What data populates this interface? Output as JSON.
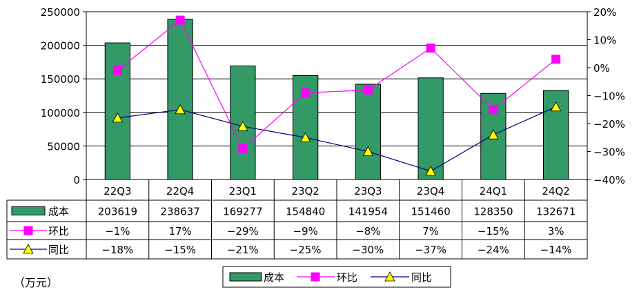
{
  "unit_label": "（万元）",
  "colors": {
    "bar_fill": "#339966",
    "bar_stroke": "#000000",
    "qoq_line": "#ff00ff",
    "qoq_marker": "#ff00ff",
    "yoy_line": "#000080",
    "yoy_marker": "#ffff00"
  },
  "chart_data": {
    "type": "bar+line",
    "categories": [
      "22Q3",
      "22Q4",
      "23Q1",
      "23Q2",
      "23Q3",
      "23Q4",
      "24Q1",
      "24Q2"
    ],
    "left_axis": {
      "min": 0,
      "max": 250000,
      "ticks": [
        "0",
        "50000",
        "100000",
        "150000",
        "200000",
        "250000"
      ]
    },
    "right_axis": {
      "min": -40,
      "max": 20,
      "ticks": [
        "-40%",
        "-30%",
        "-20%",
        "-10%",
        "0%",
        "10%",
        "20%"
      ]
    },
    "series": [
      {
        "name": "成本",
        "type": "bar",
        "axis": "left",
        "values": [
          203619,
          238637,
          169277,
          154840,
          141954,
          151460,
          128350,
          132671
        ],
        "labels": [
          "203619",
          "238637",
          "169277",
          "154840",
          "141954",
          "151460",
          "128350",
          "132671"
        ]
      },
      {
        "name": "环比",
        "type": "line",
        "axis": "right",
        "marker": "square",
        "values": [
          -1,
          17,
          -29,
          -9,
          -8,
          7,
          -15,
          3
        ],
        "labels": [
          "-1%",
          "17%",
          "-29%",
          "-9%",
          "-8%",
          "7%",
          "-15%",
          "3%"
        ]
      },
      {
        "name": "同比",
        "type": "line",
        "axis": "right",
        "marker": "triangle",
        "values": [
          -18,
          -15,
          -21,
          -25,
          -30,
          -37,
          -24,
          -14
        ],
        "labels": [
          "-18%",
          "-15%",
          "-21%",
          "-25%",
          "-30%",
          "-37%",
          "-24%",
          "-14%"
        ]
      }
    ],
    "legend": [
      "成本",
      "环比",
      "同比"
    ],
    "legend_position": "bottom-center",
    "grid": true
  }
}
